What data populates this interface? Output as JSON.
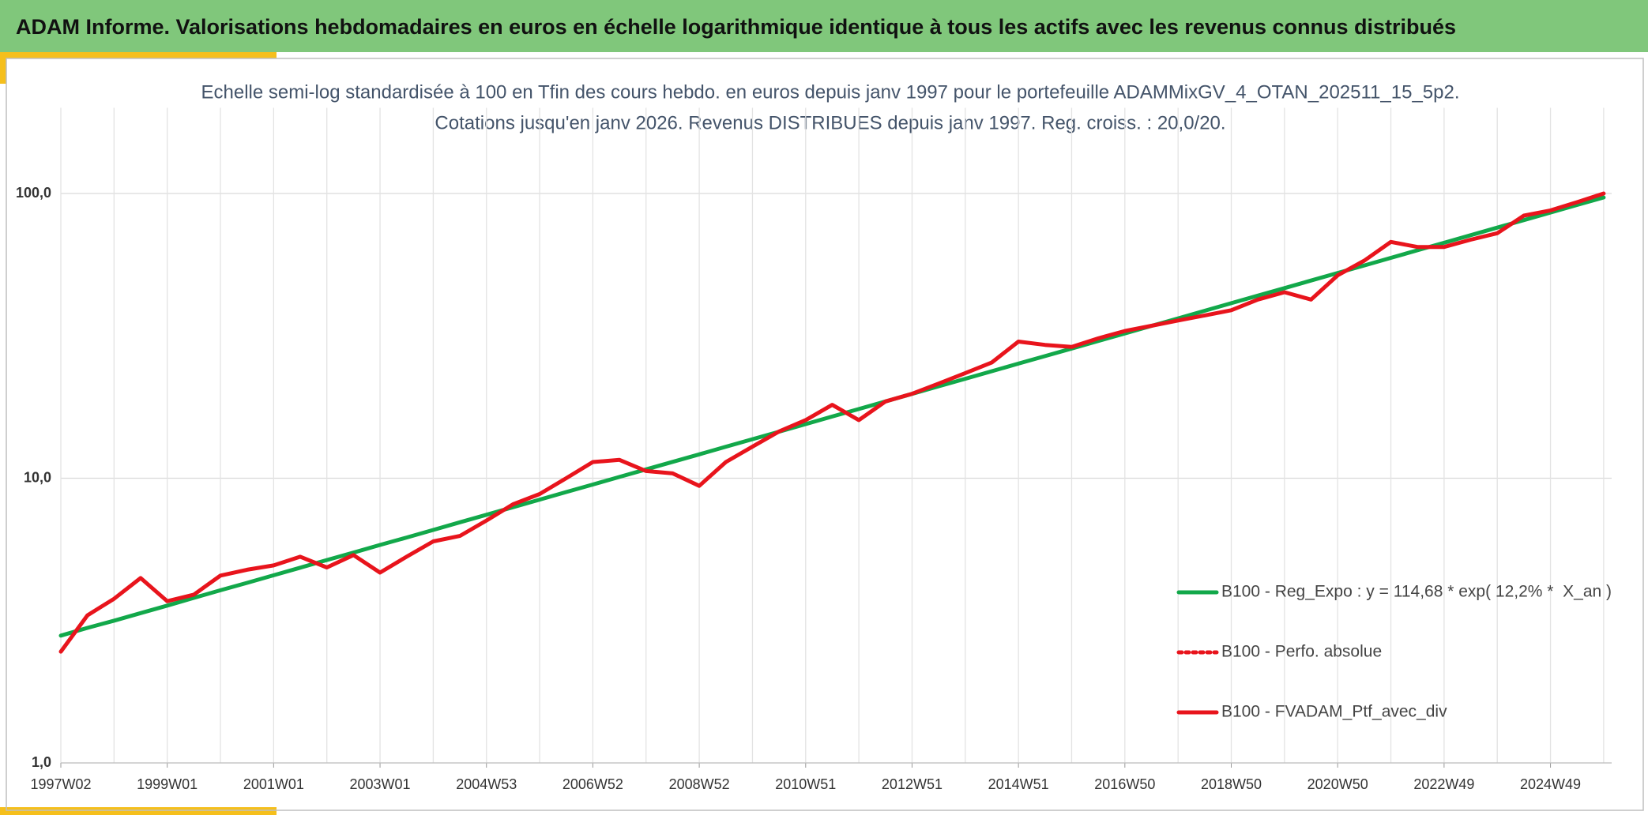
{
  "banner": "ADAM Informe. Valorisations hebdomadaires en euros en échelle logarithmique identique à tous les actifs avec les revenus connus distribués",
  "chart_data": {
    "type": "line",
    "title": "Echelle semi-log standardisée à 100 en Tfin des cours hebdo. en euros depuis janv 1997 pour le portefeuille ADAMMixGV_4_OTAN_202511_15_5p2.",
    "subtitle": "Cotations jusqu'en janv 2026. Revenus DISTRIBUES depuis janv 1997. Reg. croiss. : 20,0/20.",
    "categories": [
      "1997W02",
      null,
      null,
      null,
      "1999W01",
      null,
      null,
      null,
      "2001W01",
      null,
      null,
      null,
      "2003W01",
      null,
      null,
      null,
      "2004W53",
      null,
      null,
      null,
      "2006W52",
      null,
      null,
      null,
      "2008W52",
      null,
      null,
      null,
      "2010W51",
      null,
      null,
      null,
      "2012W51",
      null,
      null,
      null,
      "2014W51",
      null,
      null,
      null,
      "2016W50",
      null,
      null,
      null,
      "2018W50",
      null,
      null,
      null,
      "2020W50",
      null,
      null,
      null,
      "2022W49",
      null,
      null,
      null,
      "2024W49",
      null,
      null
    ],
    "series": [
      {
        "name": "B100 - Reg_Expo : y = 114,68 * exp( 12,2% *  X_an )",
        "color": "#12a84a",
        "dash": "solid",
        "values": [
          2.8,
          2.98,
          3.16,
          3.36,
          3.57,
          3.8,
          4.04,
          4.29,
          4.56,
          4.85,
          5.16,
          5.48,
          5.83,
          6.19,
          6.58,
          7.0,
          7.44,
          7.91,
          8.41,
          8.94,
          9.5,
          10.1,
          10.74,
          11.41,
          12.13,
          12.9,
          13.71,
          14.57,
          15.49,
          16.47,
          17.5,
          18.61,
          19.78,
          21.03,
          22.35,
          23.76,
          25.26,
          26.85,
          28.54,
          30.34,
          32.25,
          34.28,
          36.44,
          38.74,
          41.18,
          43.78,
          46.53,
          49.47,
          52.58,
          55.9,
          59.42,
          63.16,
          67.14,
          71.37,
          75.87,
          80.65,
          85.73,
          91.13,
          96.87
        ]
      },
      {
        "name": "B100 - Perfo. absolue",
        "color": "#e8141c",
        "dash": "dotted",
        "values": [
          2.46,
          3.3,
          3.77,
          4.46,
          3.7,
          3.9,
          4.55,
          4.77,
          4.94,
          5.3,
          4.86,
          5.37,
          4.66,
          5.3,
          6.0,
          6.27,
          7.1,
          8.1,
          8.8,
          10.0,
          11.4,
          11.6,
          10.6,
          10.4,
          9.4,
          11.4,
          12.9,
          14.6,
          16.0,
          18.1,
          16.0,
          18.6,
          19.8,
          21.5,
          23.4,
          25.5,
          30.2,
          29.4,
          28.9,
          31.0,
          32.9,
          34.3,
          35.8,
          37.3,
          38.9,
          42.4,
          45.0,
          42.4,
          51.6,
          58.1,
          67.6,
          64.9,
          64.9,
          68.8,
          72.5,
          83.6,
          87.2,
          93.2,
          100.0
        ]
      },
      {
        "name": "B100 - FVADAM_Ptf_avec_div",
        "color": "#e8141c",
        "dash": "solid",
        "values": [
          2.46,
          3.3,
          3.77,
          4.46,
          3.7,
          3.9,
          4.55,
          4.77,
          4.94,
          5.3,
          4.86,
          5.37,
          4.66,
          5.3,
          6.0,
          6.27,
          7.1,
          8.1,
          8.8,
          10.0,
          11.4,
          11.6,
          10.6,
          10.4,
          9.4,
          11.4,
          12.9,
          14.6,
          16.0,
          18.1,
          16.0,
          18.6,
          19.8,
          21.5,
          23.4,
          25.5,
          30.2,
          29.4,
          28.9,
          31.0,
          32.9,
          34.3,
          35.8,
          37.3,
          38.9,
          42.4,
          45.0,
          42.4,
          51.6,
          58.1,
          67.6,
          64.9,
          64.9,
          68.8,
          72.5,
          83.6,
          87.2,
          93.2,
          100.0
        ]
      }
    ],
    "log_y": true,
    "ylim": [
      1,
      200
    ],
    "yticks": [
      {
        "value": 1,
        "label": "1,0"
      },
      {
        "value": 10,
        "label": "10,0"
      },
      {
        "value": 100,
        "label": "100,0"
      }
    ],
    "grid": true,
    "legend": "right"
  }
}
